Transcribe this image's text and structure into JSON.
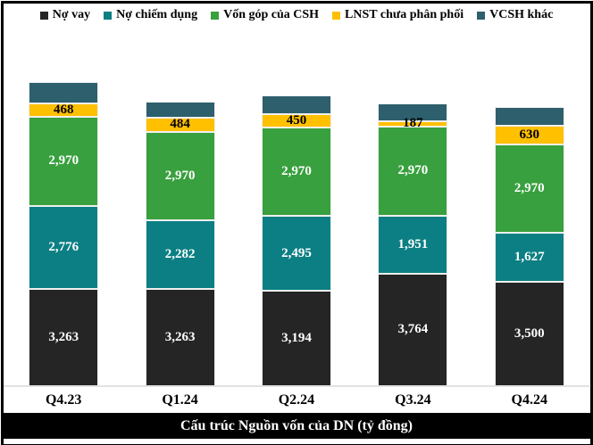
{
  "legend": {
    "items": [
      {
        "label": "Nợ vay",
        "color": "#252525"
      },
      {
        "label": "Nợ chiếm dụng",
        "color": "#0b7f83"
      },
      {
        "label": "Vốn góp của CSH",
        "color": "#38a03e"
      },
      {
        "label": "LNST chưa phân phối",
        "color": "#ffc000"
      },
      {
        "label": "VCSH khác",
        "color": "#2d5f6d"
      }
    ]
  },
  "footer": {
    "title": "Cấu trúc Nguồn vốn của DN (tỷ đồng)"
  },
  "chart_data": {
    "type": "bar",
    "stacked": true,
    "title": "Cấu trúc Nguồn vốn của DN (tỷ đồng)",
    "unit": "tỷ đồng",
    "categories": [
      "Q4.23",
      "Q1.24",
      "Q2.24",
      "Q3.24",
      "Q4.24"
    ],
    "series": [
      {
        "name": "Nợ vay",
        "color": "#252525",
        "label_color": "#ffffff",
        "show_labels": true,
        "values": [
          3263,
          3263,
          3194,
          3764,
          3500
        ]
      },
      {
        "name": "Nợ chiếm dụng",
        "color": "#0b7f83",
        "label_color": "#ffffff",
        "show_labels": true,
        "values": [
          2776,
          2282,
          2495,
          1951,
          1627
        ]
      },
      {
        "name": "Vốn góp của CSH",
        "color": "#38a03e",
        "label_color": "#ffffff",
        "show_labels": true,
        "values": [
          2970,
          2970,
          2970,
          2970,
          2970
        ]
      },
      {
        "name": "LNST chưa phân phối",
        "color": "#ffc000",
        "label_color": "#000000",
        "show_labels": true,
        "values": [
          468,
          484,
          450,
          187,
          630
        ]
      },
      {
        "name": "VCSH khác",
        "color": "#2d5f6d",
        "label_color": "#ffffff",
        "show_labels": false,
        "values_estimated_from_pixels": true,
        "values": [
          690,
          540,
          610,
          580,
          630
        ]
      }
    ],
    "value_label_format": "#,##0",
    "legend_position": "top",
    "grid": false
  }
}
